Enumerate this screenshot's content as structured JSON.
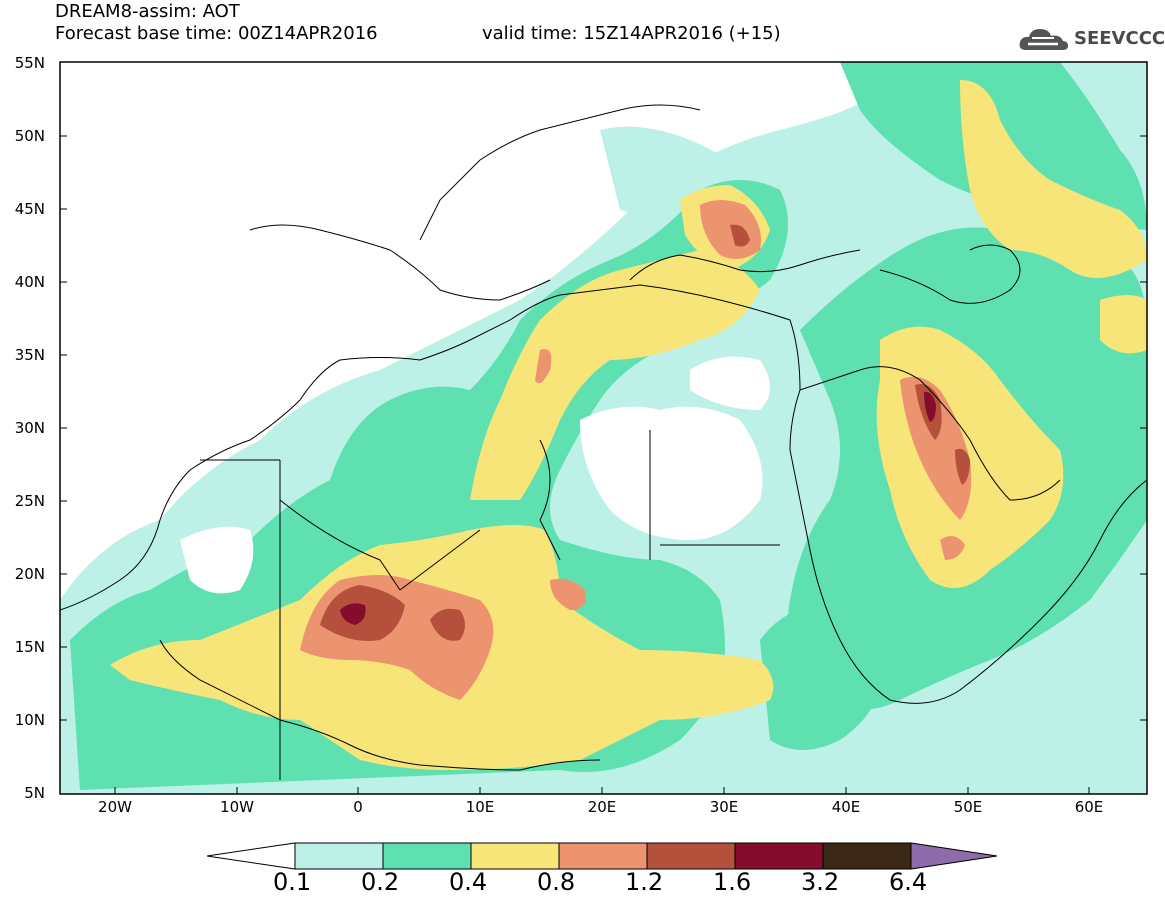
{
  "header": {
    "line1": "DREAM8-assim: AOT",
    "line2_base": "Forecast base time: 00Z14APR2016",
    "line2_valid": "valid time: 15Z14APR2016 (+15)",
    "logo_text": "SEEVCCC",
    "logo_icon": "cloud-icon"
  },
  "map": {
    "lat_labels": [
      "55N",
      "50N",
      "45N",
      "40N",
      "35N",
      "30N",
      "25N",
      "20N",
      "15N",
      "10N",
      "5N"
    ],
    "lon_labels": [
      "20W",
      "10W",
      "0",
      "10E",
      "20E",
      "30E",
      "40E",
      "50E",
      "60E"
    ]
  },
  "legend": {
    "values": [
      "0.1",
      "0.2",
      "0.4",
      "0.8",
      "1.2",
      "1.6",
      "3.2",
      "6.4"
    ],
    "colors": [
      "#ffffff",
      "#bdf0e6",
      "#5ee0b0",
      "#f7e57a",
      "#ec9470",
      "#b4503c",
      "#850c2d",
      "#3c2816",
      "#8e6cac"
    ]
  }
}
